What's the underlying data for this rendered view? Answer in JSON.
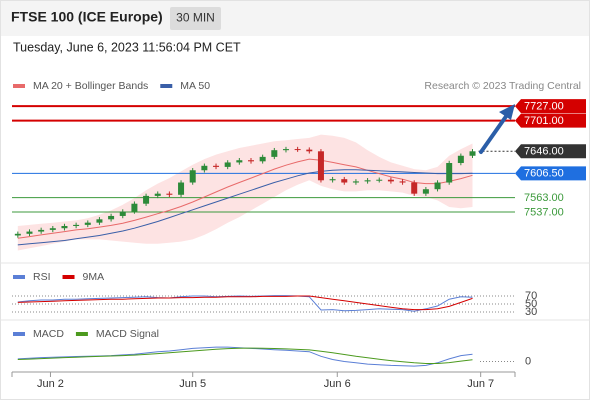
{
  "header": {
    "title": "FTSE 100 (ICE Europe)",
    "timeframe": "30 MIN",
    "timestamp": "Tuesday, June 6, 2023 11:56:04 PM CET"
  },
  "chart_data": [
    {
      "type": "candlestick",
      "credit": "Research © 2023 Trading Central",
      "up_color": "#2d8a39",
      "down_color": "#c62828",
      "open": [
        7495,
        7498,
        7502,
        7505,
        7508,
        7512,
        7514,
        7518,
        7524,
        7530,
        7538,
        7552,
        7566,
        7570,
        7568,
        7590,
        7612,
        7620,
        7618,
        7626,
        7630,
        7628,
        7636,
        7648,
        7650,
        7649,
        7646,
        7594,
        7596,
        7590,
        7592,
        7594,
        7595,
        7592,
        7590,
        7570,
        7578,
        7590,
        7625,
        7638
      ],
      "high": [
        7502,
        7506,
        7509,
        7512,
        7516,
        7518,
        7522,
        7528,
        7534,
        7542,
        7556,
        7570,
        7574,
        7574,
        7594,
        7616,
        7624,
        7624,
        7630,
        7634,
        7634,
        7640,
        7652,
        7654,
        7654,
        7653,
        7650,
        7600,
        7600,
        7596,
        7598,
        7599,
        7599,
        7596,
        7594,
        7582,
        7594,
        7629,
        7642,
        7650
      ],
      "low": [
        7491,
        7494,
        7498,
        7501,
        7504,
        7508,
        7510,
        7514,
        7520,
        7526,
        7534,
        7548,
        7562,
        7564,
        7564,
        7586,
        7608,
        7614,
        7614,
        7622,
        7624,
        7624,
        7632,
        7644,
        7645,
        7642,
        7590,
        7590,
        7586,
        7586,
        7588,
        7590,
        7588,
        7586,
        7566,
        7566,
        7574,
        7586,
        7621,
        7634
      ],
      "close": [
        7498,
        7502,
        7505,
        7508,
        7512,
        7514,
        7518,
        7524,
        7530,
        7538,
        7552,
        7566,
        7570,
        7568,
        7590,
        7612,
        7620,
        7618,
        7626,
        7630,
        7628,
        7636,
        7648,
        7650,
        7649,
        7646,
        7594,
        7596,
        7590,
        7592,
        7594,
        7595,
        7592,
        7590,
        7570,
        7578,
        7590,
        7625,
        7638,
        7646
      ],
      "overlays": [
        {
          "name": "MA 20 + Bollinger Bands",
          "color": "#e86a6a",
          "band_color": "#fde3e3",
          "values": [
            7490,
            7493,
            7496,
            7499,
            7502,
            7505,
            7507,
            7510,
            7513,
            7517,
            7522,
            7528,
            7534,
            7540,
            7547,
            7555,
            7564,
            7573,
            7582,
            7590,
            7598,
            7606,
            7614,
            7621,
            7627,
            7632,
            7630,
            7626,
            7622,
            7618,
            7612,
            7606,
            7600,
            7596,
            7590,
            7588,
            7588,
            7592,
            7597,
            7603
          ],
          "upper": [
            7512,
            7514,
            7516,
            7518,
            7520,
            7522,
            7526,
            7532,
            7540,
            7550,
            7562,
            7576,
            7588,
            7598,
            7610,
            7622,
            7632,
            7640,
            7646,
            7652,
            7656,
            7660,
            7664,
            7666,
            7668,
            7670,
            7676,
            7674,
            7670,
            7662,
            7648,
            7636,
            7626,
            7620,
            7614,
            7612,
            7618,
            7638,
            7650,
            7660
          ],
          "lower": [
            7468,
            7472,
            7476,
            7480,
            7484,
            7488,
            7488,
            7488,
            7486,
            7484,
            7482,
            7480,
            7480,
            7482,
            7484,
            7488,
            7496,
            7506,
            7518,
            7528,
            7540,
            7552,
            7564,
            7576,
            7586,
            7594,
            7584,
            7578,
            7574,
            7574,
            7576,
            7576,
            7574,
            7572,
            7566,
            7564,
            7558,
            7546,
            7544,
            7546
          ]
        },
        {
          "name": "MA 50",
          "color": "#3a5fa8",
          "values": [
            7478,
            7480,
            7482,
            7484,
            7486,
            7489,
            7492,
            7495,
            7499,
            7503,
            7508,
            7514,
            7520,
            7527,
            7534,
            7541,
            7548,
            7555,
            7562,
            7569,
            7576,
            7583,
            7590,
            7596,
            7602,
            7607,
            7610,
            7612,
            7613,
            7613,
            7612,
            7611,
            7610,
            7609,
            7608,
            7607,
            7606,
            7606,
            7606,
            7606.5
          ]
        }
      ],
      "levels": [
        {
          "value": 7727,
          "label": "7727.00",
          "color": "#d40000",
          "style": "badge",
          "line": "solid"
        },
        {
          "value": 7701,
          "label": "7701.00",
          "color": "#d40000",
          "style": "badge",
          "line": "solid"
        },
        {
          "value": 7646,
          "label": "7646.00",
          "color": "#333333",
          "style": "badge",
          "line": "dotted"
        },
        {
          "value": 7606.5,
          "label": "7606.50",
          "color": "#1f6fe0",
          "style": "badge",
          "line": "solid"
        },
        {
          "value": 7563,
          "label": "7563.00",
          "color": "#3c9a3c",
          "style": "text",
          "line": "solid"
        },
        {
          "value": 7537,
          "label": "7537.00",
          "color": "#3c9a3c",
          "style": "text",
          "line": "solid"
        }
      ],
      "ylim": [
        7451,
        7747
      ]
    },
    {
      "type": "line",
      "ylim": [
        20,
        100
      ],
      "yticks": [
        70,
        50,
        30
      ],
      "series": [
        {
          "name": "RSI",
          "color": "#5b7fd6",
          "values": [
            55,
            58,
            60,
            60,
            62,
            62,
            63,
            64,
            65,
            66,
            67,
            68,
            66,
            65,
            68,
            70,
            70,
            68,
            69,
            70,
            69,
            70,
            71,
            71,
            70,
            68,
            35,
            36,
            33,
            34,
            36,
            38,
            37,
            36,
            32,
            38,
            45,
            62,
            68,
            67
          ]
        },
        {
          "name": "9MA",
          "color": "#d40000",
          "values": [
            54,
            55,
            56,
            57,
            58,
            59,
            60,
            61,
            62,
            62,
            63,
            64,
            65,
            65,
            66,
            66,
            67,
            67,
            68,
            68,
            68,
            69,
            69,
            69,
            70,
            70,
            66,
            62,
            58,
            54,
            50,
            46,
            42,
            38,
            36,
            36,
            38,
            44,
            54,
            64
          ]
        }
      ]
    },
    {
      "type": "line",
      "ylim": [
        -8,
        24
      ],
      "yticks": [
        0
      ],
      "xlim": [
        -0.5,
        40.5
      ],
      "xticks": [
        {
          "value": 2.8,
          "label": "Jun 2"
        },
        {
          "value": 15,
          "label": "Jun 5"
        },
        {
          "value": 27.4,
          "label": "Jun 6"
        },
        {
          "value": 39.7,
          "label": "Jun 7"
        }
      ],
      "series": [
        {
          "name": "MACD",
          "color": "#5b7fd6",
          "values": [
            2,
            2.5,
            3,
            3.2,
            3.5,
            3.8,
            4,
            4.2,
            4.5,
            5,
            5.5,
            6.5,
            7.5,
            8,
            9,
            10,
            10.5,
            11,
            11,
            10.5,
            10,
            9.5,
            9,
            8.5,
            8,
            7.5,
            4,
            1.5,
            0,
            -1,
            -2,
            -2.5,
            -3,
            -3.2,
            -3.5,
            -3,
            -1,
            2,
            4.5,
            5.5
          ]
        },
        {
          "name": "MACD Signal",
          "color": "#4c9a1e",
          "values": [
            1.5,
            1.8,
            2.2,
            2.6,
            3,
            3.3,
            3.6,
            3.9,
            4.2,
            4.5,
            4.9,
            5.4,
            6,
            6.6,
            7.3,
            8,
            8.7,
            9.3,
            9.8,
            10.1,
            10.2,
            10.1,
            9.9,
            9.6,
            9.2,
            8.8,
            7.8,
            6.6,
            5.3,
            4,
            2.8,
            1.7,
            0.7,
            -0.2,
            -1,
            -1.5,
            -1.5,
            -0.8,
            0.3,
            1.4
          ]
        }
      ]
    }
  ]
}
